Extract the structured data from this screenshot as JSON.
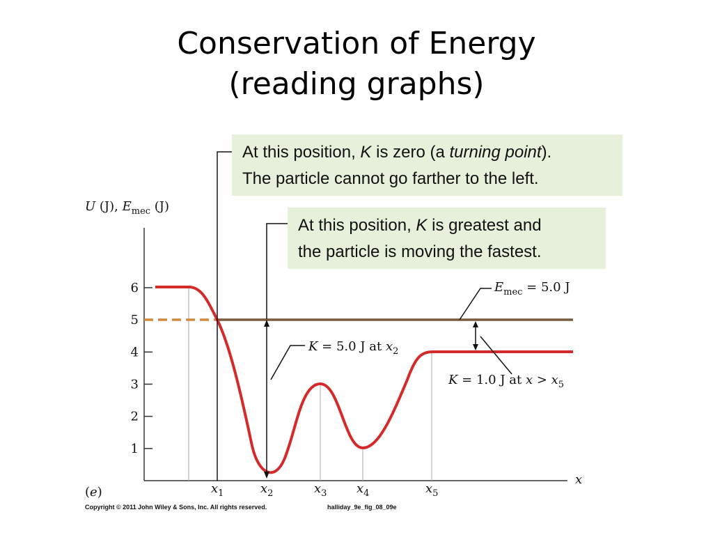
{
  "slide": {
    "title_line1": "Conservation of Energy",
    "title_line2": "(reading graphs)"
  },
  "figure": {
    "panel_label": "(e)",
    "copyright": "Copyright © 2011 John Wiley & Sons, Inc. All rights reserved.",
    "figure_id": "halliday_9e_fig_08_09e",
    "callout_turning_point": {
      "line1_pre": "At this position, ",
      "line1_var": "K",
      "line1_mid": " is zero (a ",
      "line1_em": "turning point",
      "line1_post": ").",
      "line2": "The particle cannot go farther to the left."
    },
    "callout_fastest": {
      "line1_pre": "At this position, ",
      "line1_var": "K",
      "line1_post": " is greatest and",
      "line2": "the particle is moving the fastest."
    },
    "annot_emec": {
      "var": "E",
      "sub": "mec",
      "rest": " = 5.0  J"
    },
    "annot_k_x2": {
      "var": "K",
      "rest": " = 5.0 J at ",
      "xvar": "x",
      "xsub": "2"
    },
    "annot_k_x5": {
      "var": "K",
      "rest": " = 1.0 J at ",
      "xvar": "x",
      "gt": " > ",
      "xvar2": "x",
      "xsub": "5"
    }
  },
  "chart_data": {
    "type": "line",
    "ylabel": "U (J), E_mec (J)",
    "xlabel": "x",
    "ylim": [
      0,
      6
    ],
    "y_ticks": [
      1,
      2,
      3,
      4,
      5,
      6
    ],
    "x_tick_labels": [
      {
        "var": "x",
        "sub": "1"
      },
      {
        "var": "x",
        "sub": "2"
      },
      {
        "var": "x",
        "sub": "3"
      },
      {
        "var": "x",
        "sub": "4"
      },
      {
        "var": "x",
        "sub": "5"
      }
    ],
    "potential_curve": {
      "points": [
        {
          "x": "start",
          "U": 6
        },
        {
          "x": "x1",
          "U": 5
        },
        {
          "x": "x2",
          "U": 0
        },
        {
          "x": "x3",
          "U": 3
        },
        {
          "x": "x4",
          "U": 1
        },
        {
          "x": "x5",
          "U": 4
        },
        {
          "x": "end",
          "U": 4
        }
      ],
      "color": "#d42a2a"
    },
    "mechanical_energy": {
      "U": 5.0,
      "color": "#7a5a3c"
    },
    "extension_dashed": {
      "U": 5.0,
      "color": "#d08a3c"
    },
    "colors": {
      "callout_bg": "#e6f0da"
    }
  }
}
